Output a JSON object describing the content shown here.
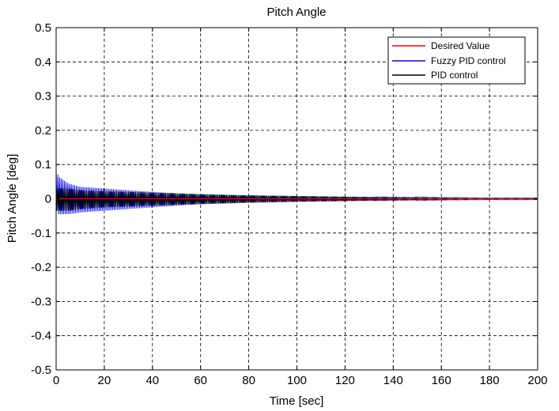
{
  "chart_data": {
    "type": "line",
    "title": "Pitch Angle",
    "xlabel": "Time [sec]",
    "ylabel": "Pitch Angle [deg]",
    "xlim": [
      0,
      200
    ],
    "ylim": [
      -0.5,
      0.5
    ],
    "xticks": [
      0,
      20,
      40,
      60,
      80,
      100,
      120,
      140,
      160,
      180,
      200
    ],
    "xtick_labels": [
      "0",
      "20",
      "40",
      "60",
      "80",
      "100",
      "120",
      "140",
      "160",
      "180",
      "200"
    ],
    "yticks": [
      -0.5,
      -0.4,
      -0.3,
      -0.2,
      -0.1,
      0,
      0.1,
      0.2,
      0.3,
      0.4,
      0.5
    ],
    "ytick_labels": [
      "-0.5",
      "-0.4",
      "-0.3",
      "-0.2",
      "-0.1",
      "0",
      "0.1",
      "0.2",
      "0.3",
      "0.4",
      "0.5"
    ],
    "grid": true,
    "legend_position": "top-right",
    "series": [
      {
        "name": "Desired Value",
        "color": "#ff0000",
        "x": [
          0,
          200
        ],
        "y": [
          0,
          0
        ]
      },
      {
        "name": "Fuzzy PID control",
        "color": "#0000ff",
        "envelope_x": [
          0,
          1,
          5,
          10,
          20,
          40,
          60,
          80,
          100,
          120,
          140,
          160,
          180,
          200
        ],
        "envelope_upper": [
          0.085,
          0.065,
          0.045,
          0.035,
          0.03,
          0.02,
          0.012,
          0.01,
          0.008,
          0.006,
          0.004,
          0.003,
          0.002,
          0.002
        ],
        "envelope_lower": [
          -0.03,
          -0.045,
          -0.045,
          -0.04,
          -0.035,
          -0.025,
          -0.015,
          -0.01,
          -0.008,
          -0.006,
          -0.004,
          -0.003,
          -0.002,
          -0.002
        ]
      },
      {
        "name": "PID control",
        "color": "#000000",
        "envelope_x": [
          0,
          5,
          10,
          20,
          40,
          60,
          80,
          100,
          120,
          140,
          160,
          180,
          200
        ],
        "envelope_upper": [
          0.03,
          0.03,
          0.025,
          0.022,
          0.018,
          0.014,
          0.01,
          0.008,
          0.006,
          0.005,
          0.003,
          0.002,
          0.002
        ],
        "envelope_lower": [
          -0.035,
          -0.035,
          -0.03,
          -0.025,
          -0.02,
          -0.016,
          -0.012,
          -0.009,
          -0.007,
          -0.005,
          -0.003,
          -0.002,
          -0.002
        ]
      }
    ]
  }
}
